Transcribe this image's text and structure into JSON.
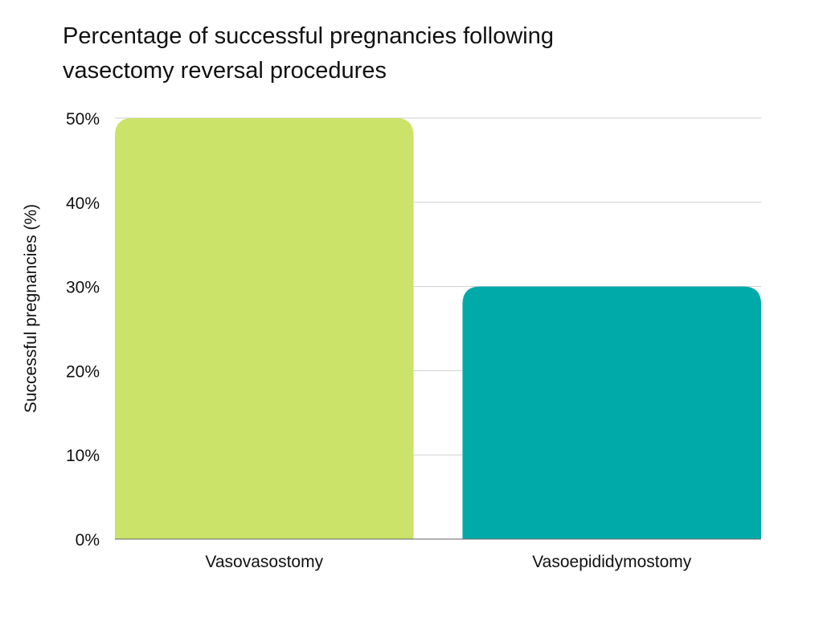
{
  "chart_data": {
    "type": "bar",
    "title": "Percentage of successful pregnancies following vasectomy reversal procedures",
    "xlabel": "",
    "ylabel": "Successful pregnancies (%)",
    "categories": [
      "Vasovasostomy",
      "Vasoepididymostomy"
    ],
    "values": [
      50,
      30
    ],
    "bar_colors": [
      "#cbe368",
      "#00aaa8"
    ],
    "ylim": [
      0,
      50
    ],
    "y_ticks": [
      0,
      10,
      20,
      30,
      40,
      50
    ],
    "y_tick_labels": [
      "0%",
      "10%",
      "20%",
      "30%",
      "40%",
      "50%"
    ],
    "grid": true,
    "legend": "none"
  }
}
